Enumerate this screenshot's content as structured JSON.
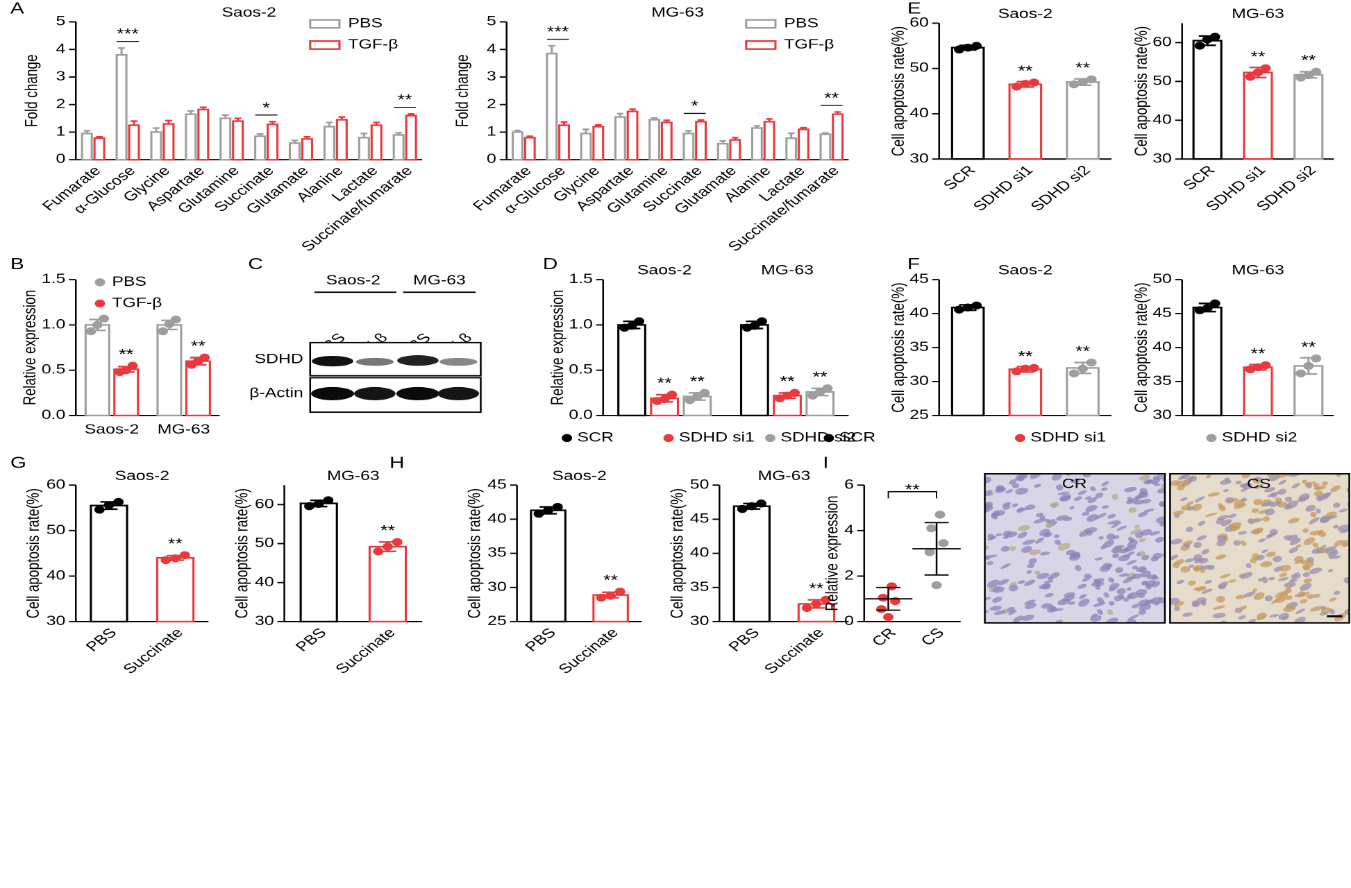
{
  "chart_data": [
    {
      "type": "bar",
      "panel": "A",
      "title": "Saos-2",
      "ylabel": "Fold change",
      "xlabel_rotation": 45,
      "legend": "upper right",
      "categories": [
        "Fumarate",
        "α-Glucose",
        "Glycine",
        "Aspartate",
        "Glutamine",
        "Succinate",
        "Glutamate",
        "Alanine",
        "Lactate",
        "Succinate/fumarate"
      ],
      "series": [
        {
          "name": "PBS",
          "color": "#9e9e9e",
          "values": [
            0.95,
            3.8,
            1.0,
            1.65,
            1.5,
            0.85,
            0.6,
            1.2,
            0.8,
            0.9
          ],
          "errors": [
            0.1,
            0.25,
            0.15,
            0.12,
            0.12,
            0.08,
            0.1,
            0.15,
            0.15,
            0.08
          ]
        },
        {
          "name": "TGF-β",
          "color": "#e8393f",
          "values": [
            0.78,
            1.25,
            1.3,
            1.82,
            1.4,
            1.28,
            0.75,
            1.45,
            1.25,
            1.6
          ],
          "errors": [
            0.05,
            0.15,
            0.12,
            0.08,
            0.1,
            0.1,
            0.08,
            0.1,
            0.1,
            0.06
          ]
        }
      ],
      "annotations": [
        {
          "label": "***",
          "category": "α-Glucose"
        },
        {
          "label": "*",
          "category": "Succinate"
        },
        {
          "label": "**",
          "category": "Succinate/fumarate"
        }
      ],
      "ylim": [
        0,
        5
      ],
      "yticks": [
        0,
        1,
        2,
        3,
        4,
        5
      ]
    },
    {
      "type": "bar",
      "title": "MG-63",
      "ylabel": "Fold change",
      "xlabel_rotation": 45,
      "legend": "upper right",
      "categories": [
        "Fumarate",
        "α-Glucose",
        "Glycine",
        "Aspartate",
        "Glutamine",
        "Succinate",
        "Glutamate",
        "Alanine",
        "Lactate",
        "Succinate/fumarate"
      ],
      "series": [
        {
          "name": "PBS",
          "color": "#9e9e9e",
          "values": [
            1.0,
            3.85,
            0.95,
            1.55,
            1.45,
            0.95,
            0.58,
            1.15,
            0.78,
            0.92
          ],
          "errors": [
            0.06,
            0.28,
            0.15,
            0.12,
            0.06,
            0.1,
            0.1,
            0.08,
            0.18,
            0.05
          ]
        },
        {
          "name": "TGF-β",
          "color": "#e8393f",
          "values": [
            0.8,
            1.25,
            1.2,
            1.75,
            1.35,
            1.38,
            0.72,
            1.38,
            1.1,
            1.65
          ],
          "errors": [
            0.05,
            0.12,
            0.06,
            0.08,
            0.08,
            0.06,
            0.08,
            0.1,
            0.06,
            0.08
          ]
        }
      ],
      "annotations": [
        {
          "label": "***",
          "category": "α-Glucose"
        },
        {
          "label": "*",
          "category": "Succinate"
        },
        {
          "label": "**",
          "category": "Succinate/fumarate"
        }
      ],
      "ylim": [
        0,
        5
      ],
      "yticks": [
        0,
        1,
        2,
        3,
        4,
        5
      ]
    },
    {
      "type": "bar",
      "panel": "E",
      "title": "Saos-2",
      "ylabel": "Cell apoptosis rate(%)",
      "xlabel_rotation": 45,
      "categories": [
        "SCR",
        "SDHD si1",
        "SDHD si2"
      ],
      "colors": [
        "#000000",
        "#e8393f",
        "#9e9e9e"
      ],
      "values": [
        54.6,
        46.5,
        47.0
      ],
      "errors": [
        0.5,
        0.6,
        0.7
      ],
      "points": [
        [
          54.2,
          55.0,
          54.6
        ],
        [
          46.0,
          46.9,
          46.6
        ],
        [
          46.5,
          47.6,
          47.0
        ]
      ],
      "annotations": [
        {
          "label": "**",
          "category": "SDHD si1"
        },
        {
          "label": "**",
          "category": "SDHD si2"
        }
      ],
      "ylim": [
        30,
        60
      ],
      "yticks": [
        30,
        40,
        50,
        60
      ]
    },
    {
      "type": "bar",
      "title": "MG-63",
      "ylabel": "Cell apoptosis rate(%)",
      "xlabel_rotation": 45,
      "categories": [
        "SCR",
        "SDHD si1",
        "SDHD si2"
      ],
      "colors": [
        "#000000",
        "#e8393f",
        "#9e9e9e"
      ],
      "values": [
        60.5,
        52.3,
        51.7
      ],
      "errors": [
        1.2,
        1.3,
        0.8
      ],
      "points": [
        [
          59.2,
          61.5,
          60.8
        ],
        [
          51.2,
          53.4,
          52.3
        ],
        [
          51.0,
          52.5,
          51.6
        ]
      ],
      "annotations": [
        {
          "label": "**",
          "category": "SDHD si1"
        },
        {
          "label": "**",
          "category": "SDHD si2"
        }
      ],
      "ylim": [
        30,
        65
      ],
      "yticks": [
        30,
        40,
        50,
        60
      ]
    },
    {
      "type": "bar",
      "panel": "B",
      "ylabel": "Relative expression",
      "legend": "upper left",
      "categories": [
        "Saos-2",
        "MG-63"
      ],
      "series": [
        {
          "name": "PBS",
          "color": "#9e9e9e",
          "values": [
            1.0,
            1.0
          ],
          "errors": [
            0.06,
            0.05
          ],
          "points": [
            [
              0.93,
              1.07,
              1.0
            ],
            [
              0.93,
              1.06,
              1.01
            ]
          ]
        },
        {
          "name": "TGF-β",
          "color": "#e8393f",
          "values": [
            0.51,
            0.6
          ],
          "errors": [
            0.03,
            0.04
          ],
          "points": [
            [
              0.48,
              0.55,
              0.5
            ],
            [
              0.56,
              0.64,
              0.6
            ]
          ]
        }
      ],
      "annotations": [
        {
          "label": "**",
          "category": "Saos-2",
          "series": "TGF-β"
        },
        {
          "label": "**",
          "category": "MG-63",
          "series": "TGF-β"
        }
      ],
      "ylim": [
        0,
        1.5
      ],
      "yticks": [
        {
          "value": 0,
          "label": "0.0"
        },
        {
          "value": 0.5,
          "label": "0.5"
        },
        {
          "value": 1,
          "label": "1.0"
        },
        {
          "value": 1.5,
          "label": "1.5"
        }
      ]
    },
    {
      "type": "bar",
      "panel": "D",
      "ylabel": "Relative expression",
      "legend": "bottom",
      "category_labels": "top",
      "categories": [
        "Saos-2",
        "MG-63"
      ],
      "series": [
        {
          "name": "SCR",
          "color": "#000000",
          "values": [
            1.0,
            1.0
          ],
          "errors": [
            0.04,
            0.04
          ],
          "points": [
            [
              0.97,
              1.04,
              0.99
            ],
            [
              0.97,
              1.04,
              0.99
            ]
          ]
        },
        {
          "name": "SDHD si1",
          "color": "#e8393f",
          "values": [
            0.19,
            0.22
          ],
          "errors": [
            0.04,
            0.03
          ],
          "points": [
            [
              0.16,
              0.23,
              0.18
            ],
            [
              0.19,
              0.25,
              0.22
            ]
          ]
        },
        {
          "name": "SDHD si2",
          "color": "#9e9e9e",
          "values": [
            0.21,
            0.26
          ],
          "errors": [
            0.04,
            0.04
          ],
          "points": [
            [
              0.17,
              0.25,
              0.21
            ],
            [
              0.22,
              0.3,
              0.26
            ]
          ]
        }
      ],
      "annotations": [
        {
          "label": "**",
          "category": "Saos-2",
          "series": "SDHD si1"
        },
        {
          "label": "**",
          "category": "Saos-2",
          "series": "SDHD si2"
        },
        {
          "label": "**",
          "category": "MG-63",
          "series": "SDHD si1"
        },
        {
          "label": "**",
          "category": "MG-63",
          "series": "SDHD si2"
        }
      ],
      "ylim": [
        0,
        1.5
      ],
      "yticks": [
        {
          "value": 0,
          "label": "0.0"
        },
        {
          "value": 0.5,
          "label": "0.5"
        },
        {
          "value": 1,
          "label": "1.0"
        },
        {
          "value": 1.5,
          "label": "1.5"
        }
      ]
    },
    {
      "type": "bar",
      "panel": "F",
      "title": "Saos-2",
      "ylabel": "Cell apoptosis rate(%)",
      "categories": [
        "SCR",
        "SDHD si1",
        "SDHD si2"
      ],
      "show_categories": false,
      "colors": [
        "#000000",
        "#e8393f",
        "#9e9e9e"
      ],
      "values": [
        40.9,
        31.8,
        32.0
      ],
      "errors": [
        0.4,
        0.4,
        0.8
      ],
      "points": [
        [
          40.6,
          41.2,
          40.9
        ],
        [
          31.5,
          32.0,
          31.9
        ],
        [
          31.2,
          32.8,
          31.9
        ]
      ],
      "annotations": [
        {
          "label": "**",
          "category": "SDHD si1"
        },
        {
          "label": "**",
          "category": "SDHD si2"
        }
      ],
      "ylim": [
        25,
        45
      ],
      "yticks": [
        25,
        30,
        35,
        40,
        45
      ]
    },
    {
      "type": "bar",
      "title": "MG-63",
      "ylabel": "Cell apoptosis rate(%)",
      "legend": "bottom",
      "categories": [
        "SCR",
        "SDHD si1",
        "SDHD si2"
      ],
      "show_categories": false,
      "colors": [
        "#000000",
        "#e8393f",
        "#9e9e9e"
      ],
      "values": [
        45.9,
        37.1,
        37.3
      ],
      "errors": [
        0.6,
        0.4,
        1.2
      ],
      "points": [
        [
          45.5,
          46.5,
          45.8
        ],
        [
          36.8,
          37.4,
          37.1
        ],
        [
          36.2,
          38.4,
          37.3
        ]
      ],
      "annotations": [
        {
          "label": "**",
          "category": "SDHD si1"
        },
        {
          "label": "**",
          "category": "SDHD si2"
        }
      ],
      "ylim": [
        30,
        50
      ],
      "yticks": [
        30,
        35,
        40,
        45,
        50
      ]
    },
    {
      "type": "bar",
      "panel": "G",
      "title": "Saos-2",
      "ylabel": "Cell apoptosis rate(%)",
      "xlabel_rotation": 45,
      "categories": [
        "PBS",
        "Succinate"
      ],
      "colors": [
        "#000000",
        "#e8393f"
      ],
      "values": [
        55.5,
        44.0
      ],
      "errors": [
        0.8,
        0.5
      ],
      "points": [
        [
          54.6,
          56.3,
          55.6
        ],
        [
          43.5,
          44.6,
          43.9
        ]
      ],
      "annotations": [
        {
          "label": "**",
          "category": "Succinate"
        }
      ],
      "ylim": [
        30,
        60
      ],
      "yticks": [
        30,
        40,
        50,
        60
      ]
    },
    {
      "type": "bar",
      "title": "MG-63",
      "ylabel": "Cell apoptosis rate(%)",
      "xlabel_rotation": 45,
      "categories": [
        "PBS",
        "Succinate"
      ],
      "colors": [
        "#000000",
        "#e8393f"
      ],
      "values": [
        60.3,
        49.2
      ],
      "errors": [
        0.8,
        1.2
      ],
      "points": [
        [
          59.6,
          61.1,
          60.2
        ],
        [
          48.0,
          50.4,
          49.2
        ]
      ],
      "annotations": [
        {
          "label": "**",
          "category": "Succinate"
        }
      ],
      "ylim": [
        30,
        65
      ],
      "yticks": [
        30,
        40,
        50,
        60
      ]
    },
    {
      "type": "bar",
      "panel": "H",
      "title": "Saos-2",
      "ylabel": "Cell apoptosis rate(%)",
      "xlabel_rotation": 45,
      "categories": [
        "PBS",
        "Succinate"
      ],
      "colors": [
        "#000000",
        "#e8393f"
      ],
      "values": [
        41.3,
        28.9
      ],
      "errors": [
        0.5,
        0.4
      ],
      "points": [
        [
          40.8,
          41.8,
          41.3
        ],
        [
          28.5,
          29.4,
          28.8
        ]
      ],
      "annotations": [
        {
          "label": "**",
          "category": "Succinate"
        }
      ],
      "ylim": [
        25,
        45
      ],
      "yticks": [
        25,
        30,
        35,
        40,
        45
      ]
    },
    {
      "type": "bar",
      "title": "MG-63",
      "ylabel": "Cell apoptosis rate(%)",
      "xlabel_rotation": 45,
      "categories": [
        "PBS",
        "Succinate"
      ],
      "colors": [
        "#000000",
        "#e8393f"
      ],
      "values": [
        46.9,
        32.6
      ],
      "errors": [
        0.4,
        0.6
      ],
      "points": [
        [
          46.5,
          47.3,
          46.9
        ],
        [
          32.0,
          33.2,
          32.6
        ]
      ],
      "annotations": [
        {
          "label": "**",
          "category": "Succinate"
        }
      ],
      "ylim": [
        30,
        50
      ],
      "yticks": [
        30,
        35,
        40,
        45,
        50
      ]
    },
    {
      "type": "scatter",
      "panel": "I",
      "ylabel": "Relative expression",
      "xlabel_rotation": 45,
      "categories": [
        "CR",
        "CS"
      ],
      "colors": [
        "#e8393f",
        "#9e9e9e"
      ],
      "points": [
        [
          1.55,
          1.05,
          0.9,
          0.55,
          0.2
        ],
        [
          4.7,
          4.1,
          3.45,
          3.05,
          1.6
        ]
      ],
      "means": [
        1.0,
        3.2
      ],
      "errors": [
        0.5,
        1.15
      ],
      "annotations": [
        {
          "label": "**",
          "from": "CR",
          "to": "CS"
        }
      ],
      "ylim": [
        0,
        6
      ],
      "yticks": [
        0,
        2,
        4,
        6
      ]
    }
  ],
  "blot": {
    "panel": "C",
    "groups": [
      "Saos-2",
      "MG-63"
    ],
    "lanes": [
      "PBS",
      "TGF-β",
      "PBS",
      "TGF-β"
    ],
    "rows": [
      "SDHD",
      "β-Actin"
    ]
  },
  "ihc": {
    "labels": [
      "CR",
      "CS"
    ]
  }
}
